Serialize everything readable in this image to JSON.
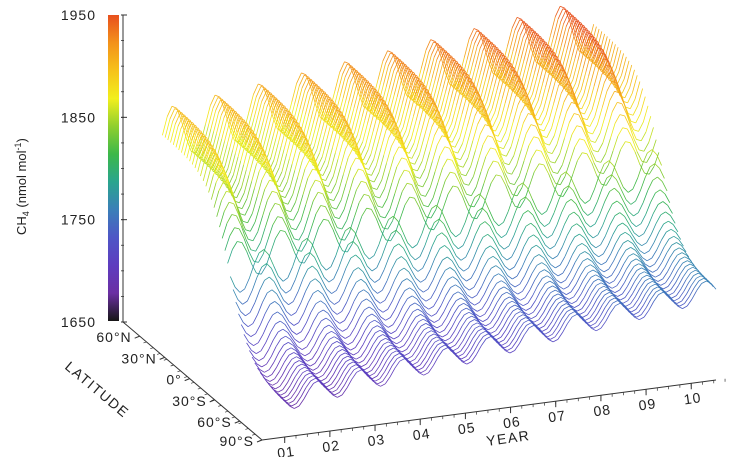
{
  "chart_data": {
    "type": "surface",
    "title": "",
    "ylabel": "CH",
    "ylabel_sub": "4",
    "ylabel_units_pre": " (nmol mol",
    "ylabel_units_sup": "-1",
    "ylabel_units_post": ")",
    "zlim": [
      1650,
      1950
    ],
    "z_ticks": [
      "1650",
      "1750",
      "1850",
      "1950"
    ],
    "latitude_label": "LATITUDE",
    "latitude_ticks": [
      "90°S",
      "60°S",
      "30°S",
      "0°",
      "30°N",
      "60°N"
    ],
    "year_label": "YEAR",
    "year_ticks": [
      "01",
      "02",
      "03",
      "04",
      "05",
      "06",
      "07",
      "08",
      "09",
      "10"
    ],
    "colorbar_colors": [
      "#161616",
      "#6b2fa3",
      "#5e3dbf",
      "#4e56c6",
      "#3a7fb8",
      "#2aa58e",
      "#3cb84a",
      "#8fcf2e",
      "#f2ef1d",
      "#f6c21a",
      "#f3921b",
      "#e8501e"
    ],
    "surface_summary": {
      "south_pole_level": 1690,
      "north_pole_level": 1870,
      "annual_cycle_amplitude_south": 12,
      "annual_cycle_amplitude_north": 30,
      "trend_per_year": 6,
      "years": 10
    }
  }
}
